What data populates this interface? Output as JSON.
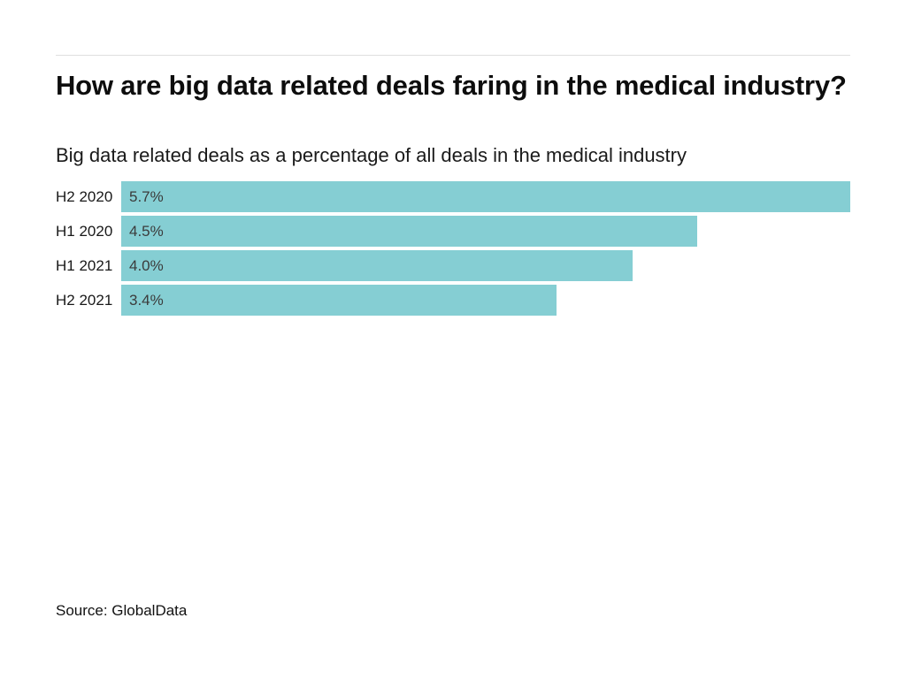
{
  "page": {
    "background": "#ffffff"
  },
  "colors": {
    "bar": "#85CED3",
    "divider": "#dedede",
    "title_text": "#0d0d0d",
    "subtitle_text": "#1a1a1a",
    "category_label": "#191919",
    "value_label": "#3b3b3b",
    "source_text": "#111111",
    "background": "#ffffff"
  },
  "chart_data": {
    "type": "bar",
    "orientation": "horizontal",
    "title": "How are big data related deals faring in the medical industry?",
    "subtitle": "Big data related deals as a percentage of all deals in the medical industry",
    "source": "Source: GlobalData",
    "categories": [
      "H2 2020",
      "H1 2020",
      "H1 2021",
      "H2 2021"
    ],
    "values": [
      5.7,
      4.5,
      4.0,
      3.4
    ],
    "value_labels": [
      "5.7%",
      "4.5%",
      "4.0%",
      "3.4%"
    ],
    "xlim": [
      0,
      5.7
    ],
    "grid": false,
    "axis_ticks": "none",
    "legend": "none",
    "value_label_position": "inside-left",
    "bar_color": "#85CED3"
  }
}
